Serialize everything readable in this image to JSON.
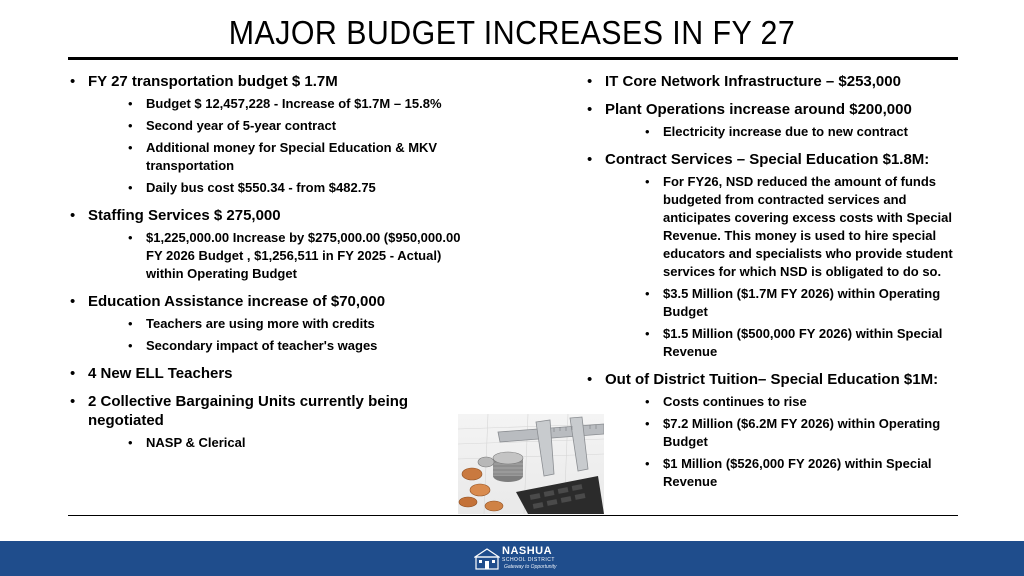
{
  "title": "MAJOR BUDGET INCREASES IN FY 27",
  "left": {
    "items": [
      {
        "text": "FY 27 transportation budget $ 1.7M",
        "subs": [
          "Budget $ 12,457,228 - Increase of $1.7M – 15.8%",
          "Second year of 5-year contract",
          "Additional money for Special Education & MKV transportation",
          "Daily bus cost $550.34 - from $482.75"
        ]
      },
      {
        "text": "Staffing Services $ 275,000",
        "subs": [
          "$1,225,000.00 Increase by $275,000.00 ($950,000.00 FY 2026 Budget , $1,256,511 in FY 2025 - Actual) within Operating Budget"
        ]
      },
      {
        "text": "Education Assistance increase of $70,000",
        "subs": [
          "Teachers are using more with credits",
          "Secondary impact of teacher's wages"
        ]
      },
      {
        "text": "4 New ELL Teachers",
        "subs": []
      },
      {
        "text": "2 Collective Bargaining Units currently being negotiated",
        "subs": [
          "NASP &  Clerical"
        ]
      }
    ]
  },
  "right": {
    "items": [
      {
        "text": "IT Core Network Infrastructure – $253,000",
        "subs": []
      },
      {
        "text": "Plant Operations increase around $200,000",
        "subs": [
          "Electricity increase due to new contract"
        ]
      },
      {
        "text": "Contract Services – Special Education $1.8M:",
        "subs": [
          "For FY26, NSD reduced the amount of funds budgeted from contracted services and anticipates covering excess costs with Special Revenue. This money is used to hire special educators and specialists who provide student services for which NSD is obligated to do so.",
          "$3.5 Million ($1.7M FY 2026) within Operating Budget",
          "$1.5 Million ($500,000 FY 2026) within Special Revenue"
        ]
      },
      {
        "text": "Out of District Tuition– Special Education $1M:",
        "subs": [
          "Costs continues to rise",
          "$7.2 Million ($6.2M FY 2026) within Operating Budget",
          "$1 Million ($526,000 FY 2026) within Special Revenue"
        ]
      }
    ]
  },
  "footer": {
    "logo_name": "NASHUA",
    "logo_sub": "SCHOOL DISTRICT",
    "logo_tagline": "Gateway to Opportunity",
    "bar_color": "#1f4d8c"
  }
}
